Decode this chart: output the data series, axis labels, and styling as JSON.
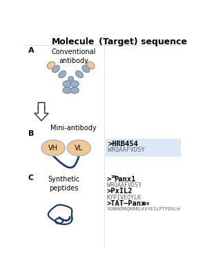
{
  "title_molecule": "Molecule",
  "title_sequence": "(Target) sequence",
  "label_A": "A",
  "label_B": "B",
  "label_C": "C",
  "text_conventional": "Conventional\nantibody",
  "text_mini": "Mini-antibody",
  "text_synthetic": "Synthetic\npeptides",
  "hrb454_header": ">HRB454",
  "hrb454_seq": "WRQAAFVDSY",
  "panx1_seq": "WRQAAFVDSY",
  "pxil2_header": ">PxIL2",
  "pxil2_seq": "KYPIVEQYLK",
  "tat_seq": "YGRKKRRQRRRLKVYEILPTFDVLH",
  "bg_box_color": "#dce8f5",
  "antibody_fill": "#9bafc4",
  "antibody_domain_fill": "#f0c896",
  "arrow_color": "#444444",
  "linker_color": "#1a3a6e",
  "peptide_color": "#1a3a6e",
  "vh_vl_fill": "#f0c896",
  "divider_color": "#aaaaaa",
  "vh_vl_edge": "#aaaaaa"
}
